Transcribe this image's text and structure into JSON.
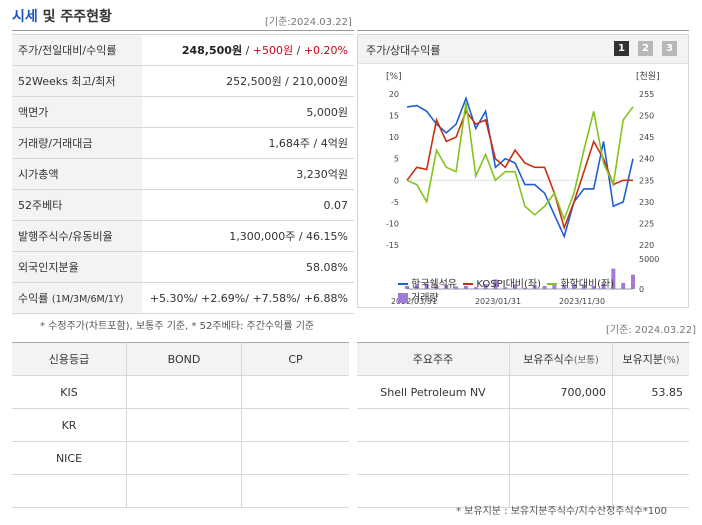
{
  "header": {
    "title_a": "시세",
    "title_b": "및 주주현황",
    "date": "[기준:2024.03.22]"
  },
  "stock_rows": [
    {
      "key": "주가/전일대비/수익률",
      "price": "248,500원",
      "sep1": " / ",
      "change": "+500원",
      "sep2": " / ",
      "pct": "+0.20%"
    },
    {
      "key": "52Weeks 최고/최저",
      "value": "252,500원 / 210,000원"
    },
    {
      "key": "액면가",
      "value": "5,000원"
    },
    {
      "key": "거래량/거래대금",
      "value": "1,684주 / 4억원"
    },
    {
      "key": "시가총액",
      "value": "3,230억원"
    },
    {
      "key": "52주베타",
      "value": "0.07"
    },
    {
      "key": "발행주식수/유동비율",
      "value": "1,300,000주 / 46.15%"
    },
    {
      "key": "외국인지분율",
      "value": "58.08%"
    },
    {
      "key": "수익률",
      "key_sub": "(1M/3M/6M/1Y)",
      "value": "+5.30%/ +2.69%/ +7.58%/ +6.88%"
    }
  ],
  "stock_note": "* 수정주가(차트포함), 보통주 기준, * 52주베타: 주간수익률 기준",
  "chart_panel": {
    "title": "주가/상대수익률",
    "pages": [
      "1",
      "2",
      "3"
    ],
    "active_page": 0
  },
  "chart_data": {
    "type": "line",
    "title": "주가/상대수익률",
    "left_unit": "[%]",
    "right_unit": "[천원]",
    "y_left_ticks": [
      "20",
      "15",
      "10",
      "5",
      "0",
      "-5",
      "-10",
      "-15"
    ],
    "y_right_ticks": [
      "255",
      "250",
      "245",
      "240",
      "235",
      "230",
      "225",
      "220"
    ],
    "ylim_left": [
      -15,
      20
    ],
    "ylim_right": [
      220,
      255
    ],
    "volume_ticks": [
      "5000",
      "0"
    ],
    "volume_max": 5000,
    "x_labels": [
      "2022/03/31",
      "2023/01/31",
      "2023/11/30"
    ],
    "series": [
      {
        "name": "한국쉘석유",
        "axis": "right",
        "color": "#1f5fd6",
        "values": [
          252,
          252.3,
          251,
          248,
          246,
          248,
          254,
          247,
          251,
          238,
          240,
          239,
          234,
          234,
          232,
          227,
          222,
          230,
          233,
          233,
          244,
          229,
          230,
          240
        ]
      },
      {
        "name": "KOSPI대비(좌)",
        "axis": "left",
        "color": "#c8300f",
        "values": [
          0,
          3,
          2.5,
          14,
          9,
          10,
          16,
          13,
          14,
          5,
          3,
          7,
          4,
          3,
          3,
          -3,
          -11,
          -5,
          2,
          9,
          5,
          -1,
          0,
          0
        ]
      },
      {
        "name": "화학대비(좌)",
        "axis": "left",
        "color": "#84c21c",
        "values": [
          0,
          -1,
          -5,
          7,
          3,
          2,
          18,
          1,
          6,
          0,
          2,
          2,
          -6,
          -8,
          -6,
          -3,
          -9,
          -3,
          7,
          16,
          4,
          -1,
          14,
          17
        ]
      },
      {
        "name": "거래량",
        "axis": "volume",
        "color": "#a27ad8",
        "values": [
          500,
          800,
          900,
          600,
          700,
          400,
          500,
          300,
          800,
          1600,
          300,
          700,
          200,
          600,
          500,
          700,
          600,
          800,
          700,
          500,
          900,
          3400,
          1000,
          2400
        ]
      }
    ]
  },
  "credit_table": {
    "headers": [
      "신용등급",
      "BOND",
      "CP"
    ],
    "rows": [
      [
        "KIS",
        "",
        ""
      ],
      [
        "KR",
        "",
        ""
      ],
      [
        "NICE",
        "",
        ""
      ],
      [
        "",
        "",
        ""
      ]
    ]
  },
  "holder_date": "[기준: 2024.03.22]",
  "holder_table": {
    "headers": [
      "주요주주",
      "보유주식수",
      "(보통)",
      "보유지분",
      "(%)"
    ],
    "rows": [
      [
        "Shell Petroleum NV",
        "700,000",
        "53.85"
      ],
      [
        "",
        "",
        ""
      ],
      [
        "",
        "",
        ""
      ],
      [
        "",
        "",
        ""
      ]
    ]
  },
  "holder_note": "* 보유지분 : 보유지분주식수/지수산정주식수*100",
  "colors": {
    "accent": "#1a55c0",
    "up": "#d0021b",
    "page_active": "#333333",
    "page_inactive": "#b8b8b8"
  }
}
